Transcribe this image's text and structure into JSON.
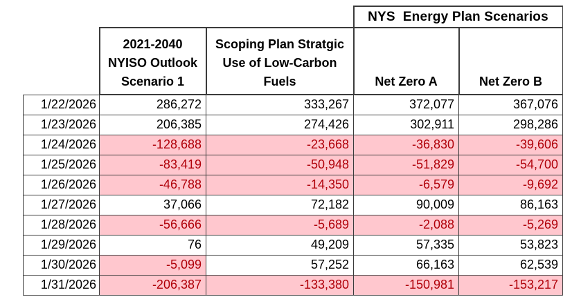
{
  "table": {
    "group_header": "NYS  Energy Plan Scenarios",
    "column_headers": [
      "2021-2040\nNYISO Outlook\nScenario 1",
      "Scoping Plan Stratgic\nUse of Low-Carbon\nFuels",
      "Net Zero A",
      "Net Zero B"
    ],
    "rows": [
      {
        "date": "1/22/2026",
        "values": [
          "286,272",
          "333,267",
          "372,077",
          "367,076"
        ]
      },
      {
        "date": "1/23/2026",
        "values": [
          "206,385",
          "274,426",
          "302,911",
          "298,286"
        ]
      },
      {
        "date": "1/24/2026",
        "values": [
          "-128,688",
          "-23,668",
          "-36,830",
          "-39,606"
        ]
      },
      {
        "date": "1/25/2026",
        "values": [
          "-83,419",
          "-50,948",
          "-51,829",
          "-54,700"
        ]
      },
      {
        "date": "1/26/2026",
        "values": [
          "-46,788",
          "-14,350",
          "-6,579",
          "-9,692"
        ]
      },
      {
        "date": "1/27/2026",
        "values": [
          "37,066",
          "72,182",
          "90,009",
          "86,163"
        ]
      },
      {
        "date": "1/28/2026",
        "values": [
          "-56,666",
          "-5,689",
          "-2,088",
          "-5,269"
        ]
      },
      {
        "date": "1/29/2026",
        "values": [
          "76",
          "49,209",
          "57,335",
          "53,823"
        ]
      },
      {
        "date": "1/30/2026",
        "values": [
          "-5,099",
          "57,252",
          "66,163",
          "62,539"
        ]
      },
      {
        "date": "1/31/2026",
        "values": [
          "-206,387",
          "-133,380",
          "-150,981",
          "-153,217"
        ]
      }
    ],
    "colors": {
      "negative_fill": "#FFC7CE",
      "negative_text": "#B00009",
      "border": "#3B3B3B"
    }
  }
}
